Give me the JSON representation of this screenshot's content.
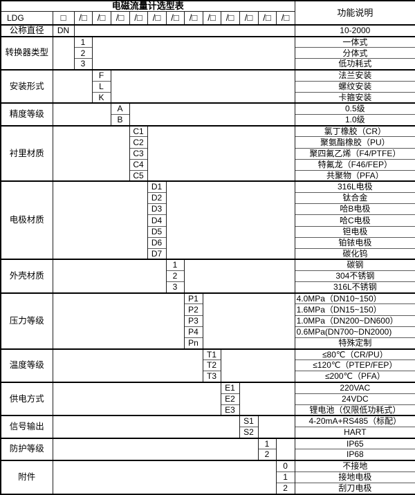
{
  "title": "电磁流量计选型表",
  "function_header": "功能说明",
  "model_code": "LDG",
  "code_boxes": {
    "first": "□",
    "slot": "/□",
    "slot_count": 12
  },
  "groups": [
    {
      "label": "公称直径",
      "col": 0,
      "options": [
        {
          "code": "DN",
          "desc": "10-2000"
        }
      ]
    },
    {
      "label": "转换器类型",
      "col": 1,
      "options": [
        {
          "code": "1",
          "desc": "一体式"
        },
        {
          "code": "2",
          "desc": "分体式"
        },
        {
          "code": "3",
          "desc": "低功耗式"
        }
      ]
    },
    {
      "label": "安装形式",
      "col": 2,
      "options": [
        {
          "code": "F",
          "desc": "法兰安装"
        },
        {
          "code": "L",
          "desc": "螺纹安装"
        },
        {
          "code": "K",
          "desc": "卡箍安装"
        }
      ]
    },
    {
      "label": "精度等级",
      "col": 3,
      "options": [
        {
          "code": "A",
          "desc": "0.5级"
        },
        {
          "code": "B",
          "desc": "1.0级"
        }
      ]
    },
    {
      "label": "衬里材质",
      "col": 4,
      "options": [
        {
          "code": "C1",
          "desc": "氯丁橡胶（CR）"
        },
        {
          "code": "C2",
          "desc": "聚氨酯橡胶（PU）"
        },
        {
          "code": "C3",
          "desc": "聚四氟乙烯（F4/PTFE）"
        },
        {
          "code": "C4",
          "desc": "特氟龙（F46/FEP）"
        },
        {
          "code": "C5",
          "desc": "共聚物（PFA）"
        }
      ]
    },
    {
      "label": "电极材质",
      "col": 5,
      "options": [
        {
          "code": "D1",
          "desc": "316L电极"
        },
        {
          "code": "D2",
          "desc": "钛合金"
        },
        {
          "code": "D3",
          "desc": "哈B电极"
        },
        {
          "code": "D4",
          "desc": "哈C电极"
        },
        {
          "code": "D5",
          "desc": "钽电极"
        },
        {
          "code": "D6",
          "desc": "铂铱电极"
        },
        {
          "code": "D7",
          "desc": "碳化钨"
        }
      ]
    },
    {
      "label": "外壳材质",
      "col": 6,
      "options": [
        {
          "code": "1",
          "desc": "碳钢"
        },
        {
          "code": "2",
          "desc": "304不锈钢"
        },
        {
          "code": "3",
          "desc": "316L不锈钢"
        }
      ]
    },
    {
      "label": "压力等级",
      "col": 7,
      "options": [
        {
          "code": "P1",
          "desc": "4.0MPa（DN10~150）",
          "align": "left"
        },
        {
          "code": "P2",
          "desc": "1.6MPa（DN15~150）",
          "align": "left"
        },
        {
          "code": "P3",
          "desc": "1.0MPa（DN200~DN600）",
          "align": "left"
        },
        {
          "code": "P4",
          "desc": "0.6MPa(DN700~DN2000)",
          "align": "left"
        },
        {
          "code": "Pn",
          "desc": "特殊定制"
        }
      ]
    },
    {
      "label": "温度等级",
      "col": 8,
      "options": [
        {
          "code": "T1",
          "desc": "≤80℃（CR/PU）"
        },
        {
          "code": "T2",
          "desc": "≤120℃（PTEP/FEP）"
        },
        {
          "code": "T3",
          "desc": "≤200℃（PFA）"
        }
      ]
    },
    {
      "label": "供电方式",
      "col": 9,
      "options": [
        {
          "code": "E1",
          "desc": "220VAC"
        },
        {
          "code": "E2",
          "desc": "24VDC"
        },
        {
          "code": "E3",
          "desc": "锂电池（仅限低功耗式）"
        }
      ]
    },
    {
      "label": "信号输出",
      "col": 10,
      "options": [
        {
          "code": "S1",
          "desc": "4-20mA+RS485（标配）"
        },
        {
          "code": "S2",
          "desc": "HART"
        }
      ]
    },
    {
      "label": "防护等级",
      "col": 11,
      "options": [
        {
          "code": "1",
          "desc": "IP65"
        },
        {
          "code": "2",
          "desc": "IP68"
        }
      ]
    },
    {
      "label": "附件",
      "col": 12,
      "options": [
        {
          "code": "0",
          "desc": "不接地"
        },
        {
          "code": "1",
          "desc": "接地电极"
        },
        {
          "code": "2",
          "desc": "刮刀电极"
        }
      ]
    }
  ],
  "colors": {
    "line": "#000000",
    "inner_line": "#5a5a5a",
    "text": "#000000",
    "bg": "#ffffff"
  }
}
